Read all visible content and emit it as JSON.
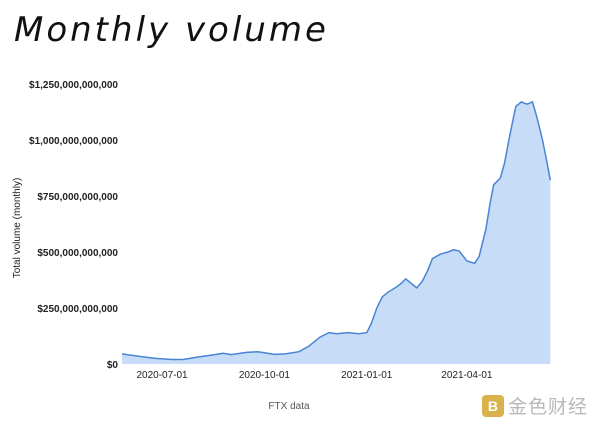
{
  "title": "Monthly volume",
  "source_label": "FTX data",
  "watermark": {
    "icon": "logo-mark",
    "text": "金色财经"
  },
  "colors": {
    "area_fill": "#c6dcf7",
    "line": "#4a84d4"
  },
  "chart_data": {
    "type": "area",
    "title": "Monthly volume",
    "xlabel": "FTX data",
    "ylabel": "Total volume (monthly)",
    "ylim": [
      0,
      1250000000000
    ],
    "yticks": [
      0,
      250000000000,
      500000000000,
      750000000000,
      1000000000000,
      1250000000000
    ],
    "ytick_labels": [
      "$0",
      "$250,000,000,000",
      "$500,000,000,000",
      "$750,000,000,000",
      "$1,000,000,000,000",
      "$1,250,000,000,000"
    ],
    "xlim": [
      "2020-05-26",
      "2021-06-30"
    ],
    "xticks": [
      "2020-07-01",
      "2020-10-01",
      "2021-01-01",
      "2021-04-01"
    ],
    "grid": false,
    "series": [
      {
        "x": [
          "2020-05-26",
          "2020-06-10",
          "2020-06-25",
          "2020-07-10",
          "2020-07-20",
          "2020-08-01",
          "2020-08-15",
          "2020-08-25",
          "2020-09-01",
          "2020-09-15",
          "2020-09-25",
          "2020-10-01",
          "2020-10-10",
          "2020-10-20",
          "2020-11-01",
          "2020-11-10",
          "2020-11-20",
          "2020-11-28",
          "2020-12-05",
          "2020-12-15",
          "2020-12-25",
          "2021-01-01",
          "2021-01-05",
          "2021-01-10",
          "2021-01-15",
          "2021-01-20",
          "2021-01-28",
          "2021-02-01",
          "2021-02-05",
          "2021-02-10",
          "2021-02-15",
          "2021-02-20",
          "2021-02-25",
          "2021-03-01",
          "2021-03-08",
          "2021-03-15",
          "2021-03-20",
          "2021-03-25",
          "2021-04-01",
          "2021-04-08",
          "2021-04-12",
          "2021-04-18",
          "2021-04-22",
          "2021-04-25",
          "2021-05-01",
          "2021-05-05",
          "2021-05-08",
          "2021-05-12",
          "2021-05-15",
          "2021-05-20",
          "2021-05-25",
          "2021-05-30",
          "2021-06-03",
          "2021-06-08",
          "2021-06-12",
          "2021-06-15"
        ],
        "values": [
          45000000000,
          35000000000,
          25000000000,
          20000000000,
          20000000000,
          30000000000,
          40000000000,
          48000000000,
          42000000000,
          52000000000,
          55000000000,
          50000000000,
          43000000000,
          45000000000,
          55000000000,
          80000000000,
          120000000000,
          140000000000,
          135000000000,
          140000000000,
          135000000000,
          140000000000,
          180000000000,
          250000000000,
          300000000000,
          320000000000,
          345000000000,
          360000000000,
          380000000000,
          360000000000,
          340000000000,
          370000000000,
          420000000000,
          470000000000,
          490000000000,
          500000000000,
          510000000000,
          505000000000,
          460000000000,
          450000000000,
          480000000000,
          600000000000,
          720000000000,
          800000000000,
          830000000000,
          900000000000,
          980000000000,
          1080000000000,
          1150000000000,
          1170000000000,
          1160000000000,
          1170000000000,
          1100000000000,
          1000000000000,
          900000000000,
          820000000000
        ]
      }
    ]
  }
}
